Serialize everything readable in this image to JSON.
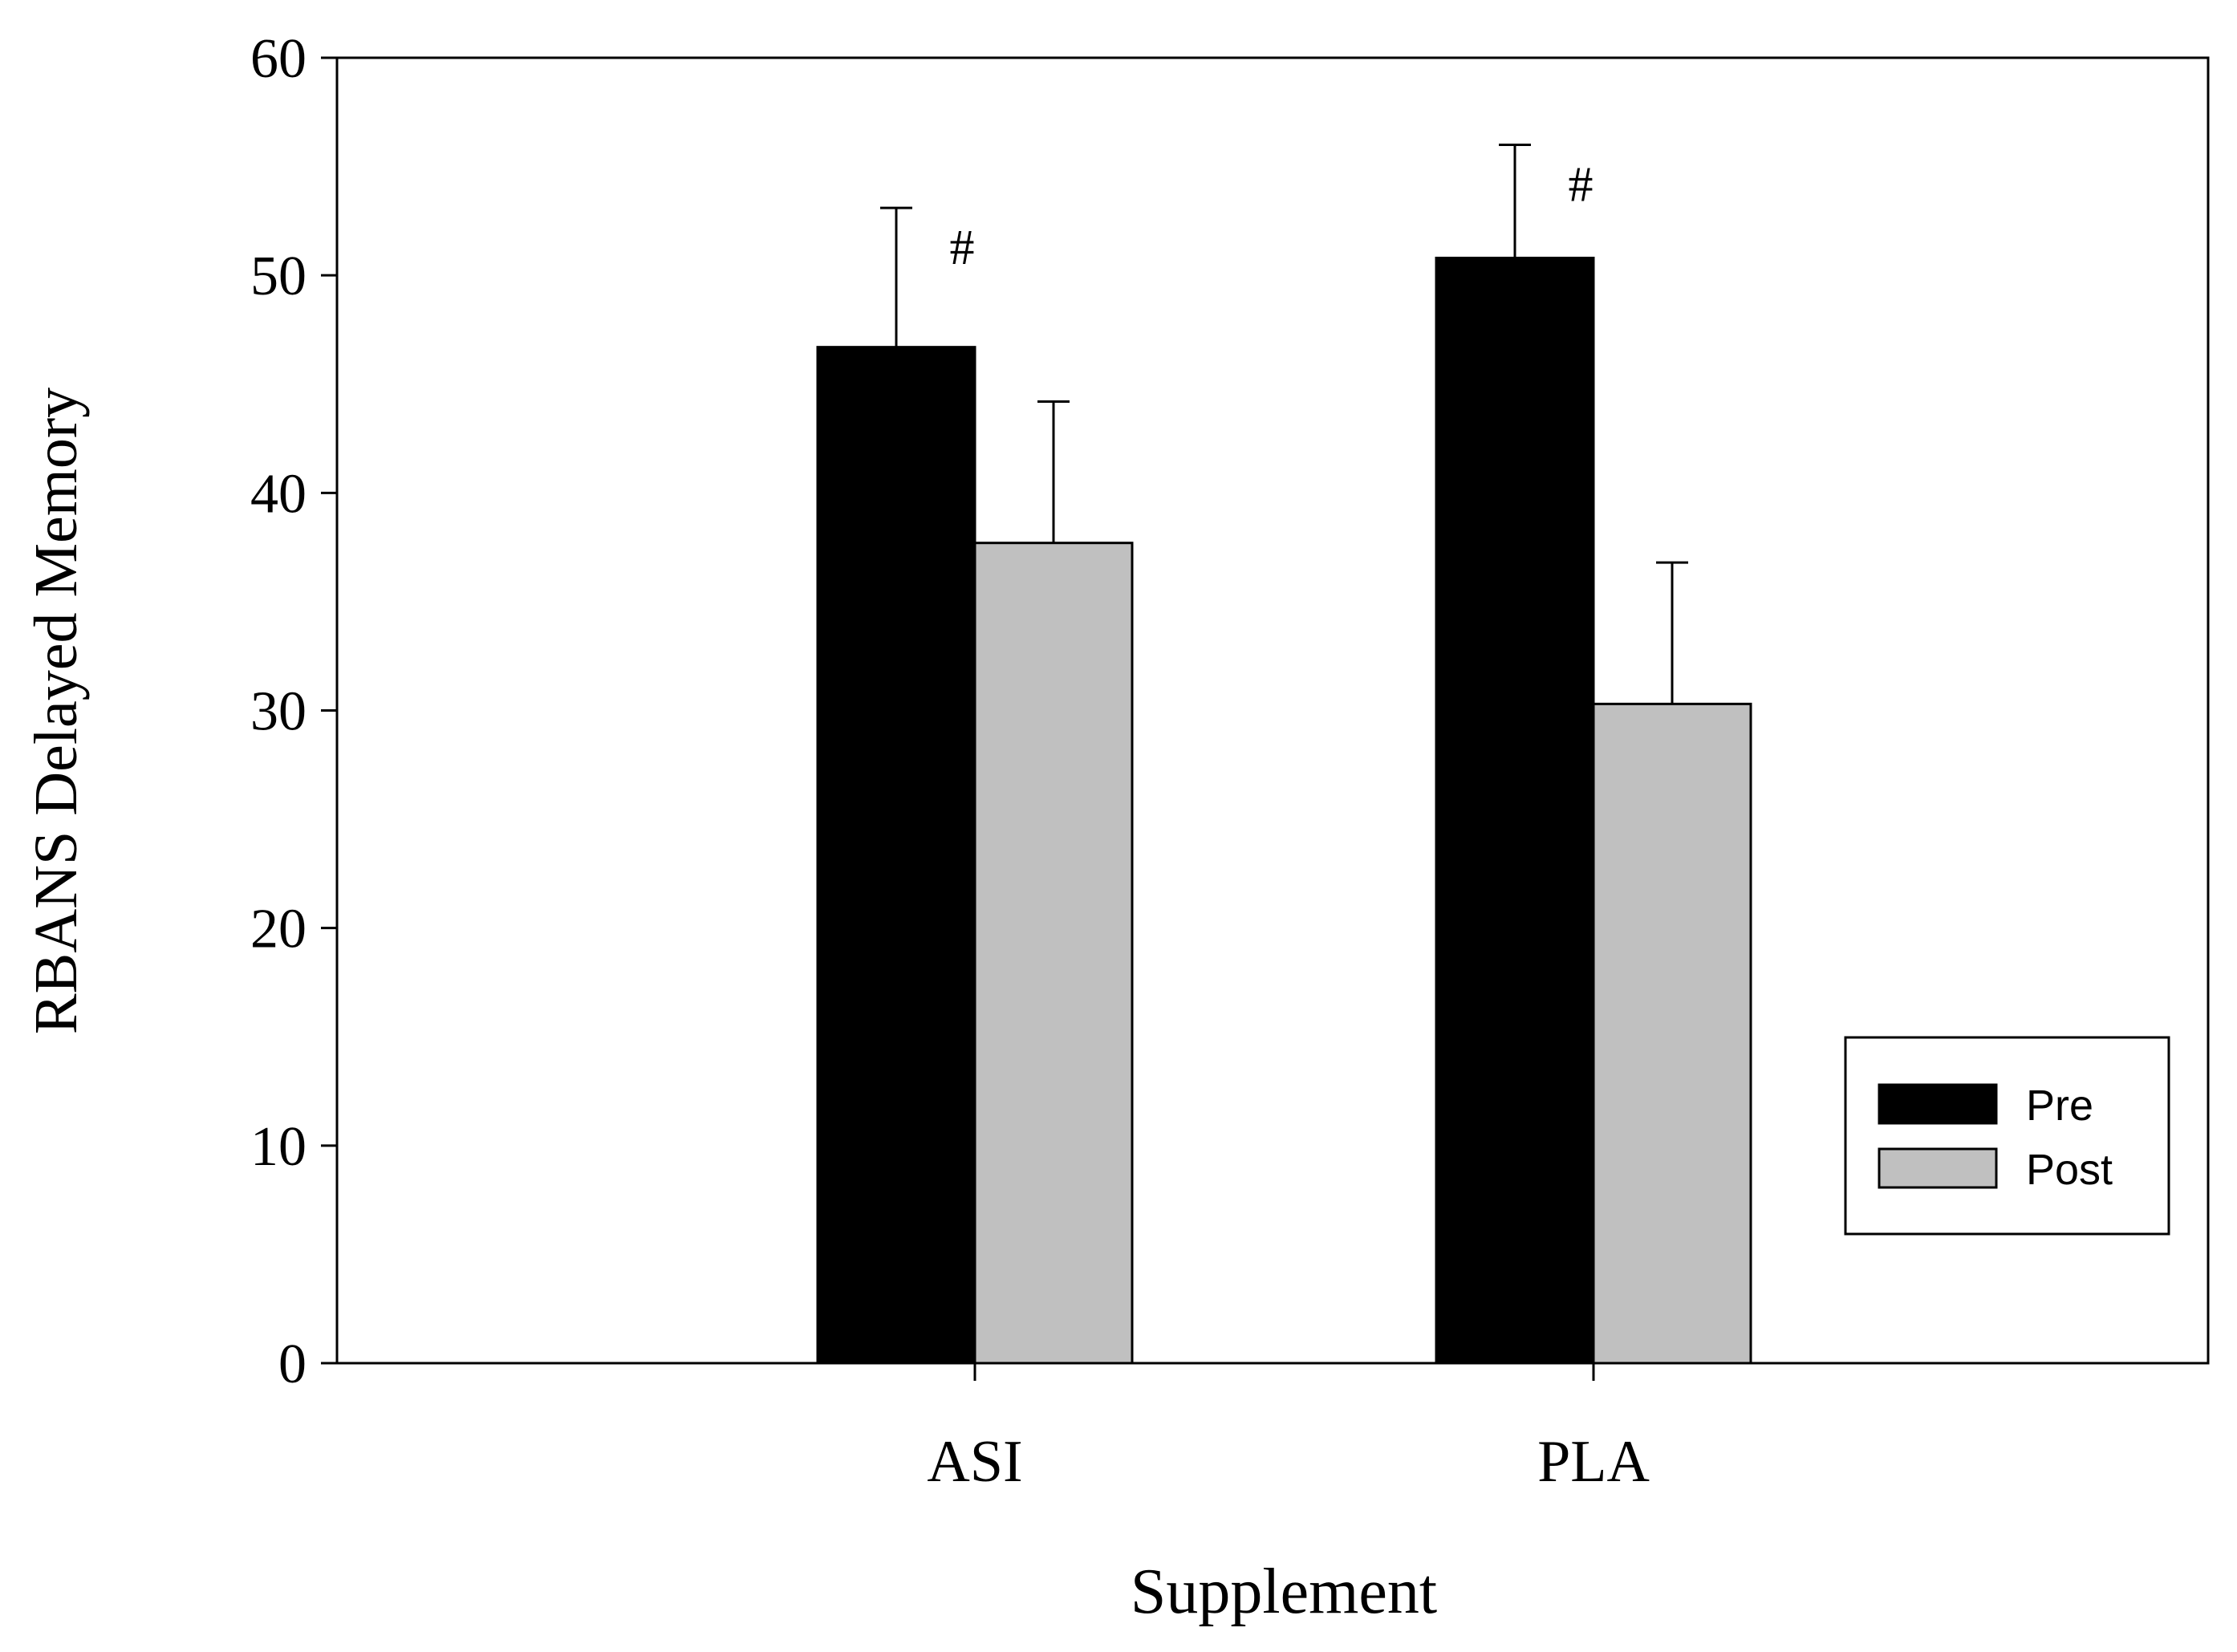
{
  "chart_data": {
    "type": "bar",
    "title": "",
    "xlabel": "Supplement",
    "ylabel": "RBANS Delayed Memory",
    "ylim": [
      0,
      60
    ],
    "yticks": [
      0,
      10,
      20,
      30,
      40,
      50,
      60
    ],
    "ytick_labels": [
      "0",
      "10",
      "20",
      "30",
      "40",
      "50",
      "60"
    ],
    "categories": [
      "ASI",
      "PLA"
    ],
    "series": [
      {
        "name": "Pre",
        "color": "#000000",
        "values": [
          46.7,
          50.8
        ],
        "errors": [
          6.4,
          5.2
        ]
      },
      {
        "name": "Post",
        "color": "#c0c0c0",
        "values": [
          37.7,
          30.3
        ],
        "errors": [
          6.5,
          6.5
        ]
      }
    ],
    "annotations": [
      {
        "category": "ASI",
        "text": "#"
      },
      {
        "category": "PLA",
        "text": "#"
      }
    ],
    "legend": {
      "position": "bottom-right",
      "entries": [
        "Pre",
        "Post"
      ]
    },
    "grid": false
  }
}
